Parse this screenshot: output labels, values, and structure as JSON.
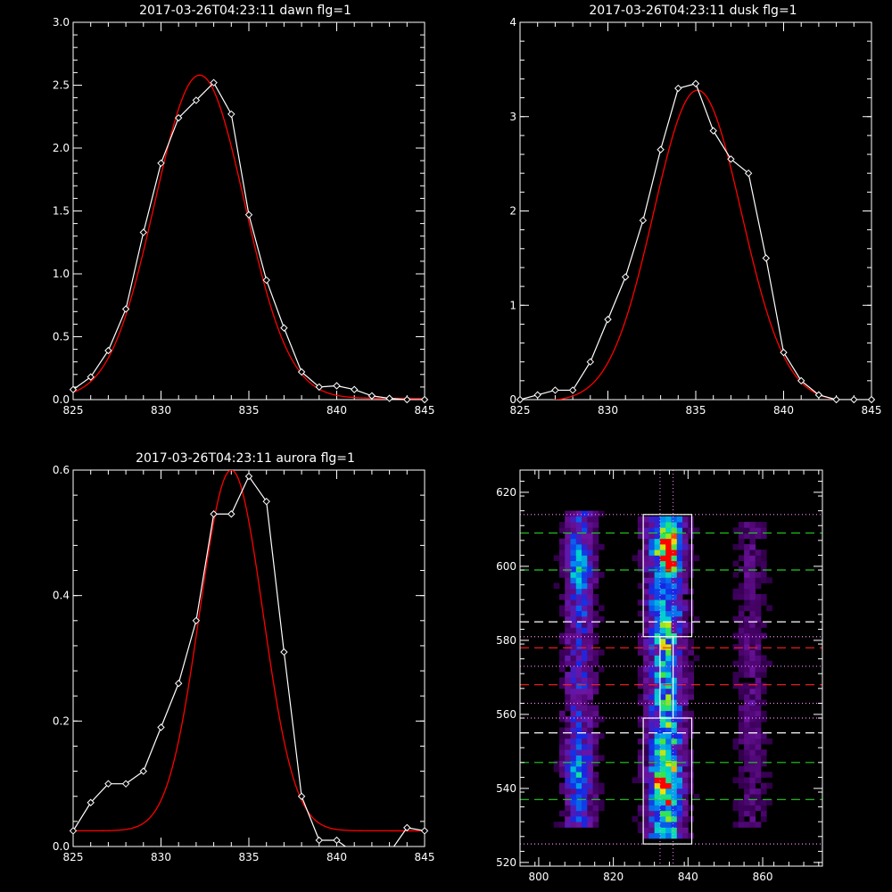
{
  "colors": {
    "background": "#000000",
    "axes": "#ffffff",
    "data_line": "#ffffff",
    "fit_line": "#ff0000",
    "box": "#ffffff",
    "green_dash": "#22cc22",
    "white_dash": "#ffffff",
    "red_dash": "#ff2222",
    "dotted": "#ff88ff"
  },
  "chart_data": [
    {
      "type": "line",
      "title": "2017-03-26T04:23:11 dawn flg=1",
      "xlim": [
        825,
        845
      ],
      "ylim": [
        0,
        3.0
      ],
      "xticks": [
        "825",
        "830",
        "835",
        "840",
        "845"
      ],
      "xtick_values": [
        825,
        830,
        835,
        840,
        845
      ],
      "yticks": [
        "0.0",
        "0.5",
        "1.0",
        "1.5",
        "2.0",
        "2.5",
        "3.0"
      ],
      "ytick_values": [
        0,
        0.5,
        1.0,
        1.5,
        2.0,
        2.5,
        3.0
      ],
      "series": [
        {
          "x": [
            825,
            826,
            827,
            828,
            829,
            830,
            831,
            832,
            833,
            834,
            835,
            836,
            837,
            838,
            839,
            840,
            841,
            842,
            843,
            844,
            845
          ],
          "y": [
            0.08,
            0.18,
            0.39,
            0.72,
            1.33,
            1.88,
            2.24,
            2.38,
            2.52,
            2.27,
            1.47,
            0.95,
            0.57,
            0.22,
            0.1,
            0.11,
            0.08,
            0.03,
            0.01,
            0.0,
            0.0
          ],
          "markers": true
        },
        {
          "fit": {
            "kind": "gaussian",
            "amp": 2.57,
            "center": 832.2,
            "sigma": 2.55,
            "offset": 0.01
          }
        }
      ]
    },
    {
      "type": "line",
      "title": "2017-03-26T04:23:11 dusk flg=1",
      "xlim": [
        825,
        845
      ],
      "ylim": [
        0,
        4
      ],
      "xticks": [
        "825",
        "830",
        "835",
        "840",
        "845"
      ],
      "xtick_values": [
        825,
        830,
        835,
        840,
        845
      ],
      "yticks": [
        "0",
        "1",
        "2",
        "3",
        "4"
      ],
      "ytick_values": [
        0,
        1,
        2,
        3,
        4
      ],
      "series": [
        {
          "x": [
            825,
            826,
            827,
            828,
            829,
            830,
            831,
            832,
            833,
            834,
            835,
            836,
            837,
            838,
            839,
            840,
            841,
            842,
            843,
            844,
            845
          ],
          "y": [
            0.0,
            0.05,
            0.1,
            0.1,
            0.4,
            0.85,
            1.3,
            1.9,
            2.65,
            3.3,
            3.35,
            2.85,
            2.55,
            2.4,
            1.5,
            0.5,
            0.2,
            0.05,
            0.0,
            0.0,
            0.0
          ],
          "markers": true
        },
        {
          "fit": {
            "kind": "gaussian",
            "amp": 3.3,
            "center": 835.1,
            "sigma": 2.5,
            "offset": -0.02
          }
        }
      ]
    },
    {
      "type": "line",
      "title": "2017-03-26T04:23:11 aurora flg=1",
      "xlim": [
        825,
        845
      ],
      "ylim": [
        0,
        0.6
      ],
      "xticks": [
        "825",
        "830",
        "835",
        "840",
        "845"
      ],
      "xtick_values": [
        825,
        830,
        835,
        840,
        845
      ],
      "yticks": [
        "0.0",
        "0.2",
        "0.4",
        "0.6"
      ],
      "ytick_values": [
        0,
        0.2,
        0.4,
        0.6
      ],
      "series": [
        {
          "x": [
            825,
            826,
            827,
            828,
            829,
            830,
            831,
            832,
            833,
            834,
            835,
            836,
            837,
            838,
            839,
            840,
            841,
            842,
            843,
            844,
            845
          ],
          "y": [
            0.025,
            0.07,
            0.1,
            0.1,
            0.12,
            0.19,
            0.26,
            0.36,
            0.53,
            0.53,
            0.59,
            0.55,
            0.31,
            0.08,
            0.01,
            0.01,
            -0.01,
            -0.01,
            -0.01,
            0.03,
            0.025
          ],
          "markers": true
        },
        {
          "fit": {
            "kind": "gaussian",
            "amp": 0.575,
            "center": 834.0,
            "sigma": 1.8,
            "offset": 0.025
          }
        }
      ]
    },
    {
      "type": "heatmap",
      "title": "",
      "xlim": [
        795,
        876
      ],
      "ylim": [
        519,
        626
      ],
      "xticks": [
        "800",
        "820",
        "840",
        "860"
      ],
      "xtick_values": [
        800,
        820,
        840,
        860
      ],
      "yticks": [
        "520",
        "540",
        "560",
        "580",
        "600",
        "620"
      ],
      "ytick_values": [
        520,
        540,
        560,
        580,
        600,
        620
      ],
      "bands": [
        {
          "x_center": 811,
          "x_width": 6,
          "y_ranges": [
            [
              530,
              615
            ],
            [
              555,
              565
            ]
          ],
          "intensity": 0.5
        },
        {
          "x_center": 834,
          "x_width": 7,
          "y_ranges": [
            [
              527,
              614
            ]
          ],
          "intensity": 0.9
        },
        {
          "x_center": 857,
          "x_width": 6,
          "y_ranges": [
            [
              530,
              612
            ]
          ],
          "intensity": 0.25
        }
      ],
      "hotspots": [
        {
          "x": 835,
          "y": 605,
          "value": 1.0
        },
        {
          "x": 834,
          "y": 542,
          "value": 0.8
        },
        {
          "x": 811,
          "y": 600,
          "value": 0.65
        },
        {
          "x": 810,
          "y": 545,
          "value": 0.6
        }
      ],
      "boxes": [
        {
          "x0": 828,
          "x1": 841,
          "y0": 581,
          "y1": 614
        },
        {
          "x0": 828,
          "x1": 841,
          "y0": 525,
          "y1": 559
        },
        {
          "x0": 832.5,
          "x1": 836,
          "y0": 559,
          "y1": 581
        }
      ],
      "vlines": [
        {
          "x": 832.5,
          "style": "dotted"
        },
        {
          "x": 836,
          "style": "dotted"
        }
      ],
      "hlines": [
        {
          "y": 609,
          "style": "green_dash"
        },
        {
          "y": 599,
          "style": "green_dash"
        },
        {
          "y": 585,
          "style": "white_dash"
        },
        {
          "y": 578,
          "style": "red_dash"
        },
        {
          "y": 568,
          "style": "red_dash"
        },
        {
          "y": 555,
          "style": "white_dash"
        },
        {
          "y": 547,
          "style": "green_dash"
        },
        {
          "y": 537,
          "style": "green_dash"
        },
        {
          "y": 614,
          "style": "dotted"
        },
        {
          "y": 581,
          "style": "dotted"
        },
        {
          "y": 573,
          "style": "dotted"
        },
        {
          "y": 563,
          "style": "dotted"
        },
        {
          "y": 559,
          "style": "dotted"
        },
        {
          "y": 525,
          "style": "dotted"
        }
      ]
    }
  ]
}
